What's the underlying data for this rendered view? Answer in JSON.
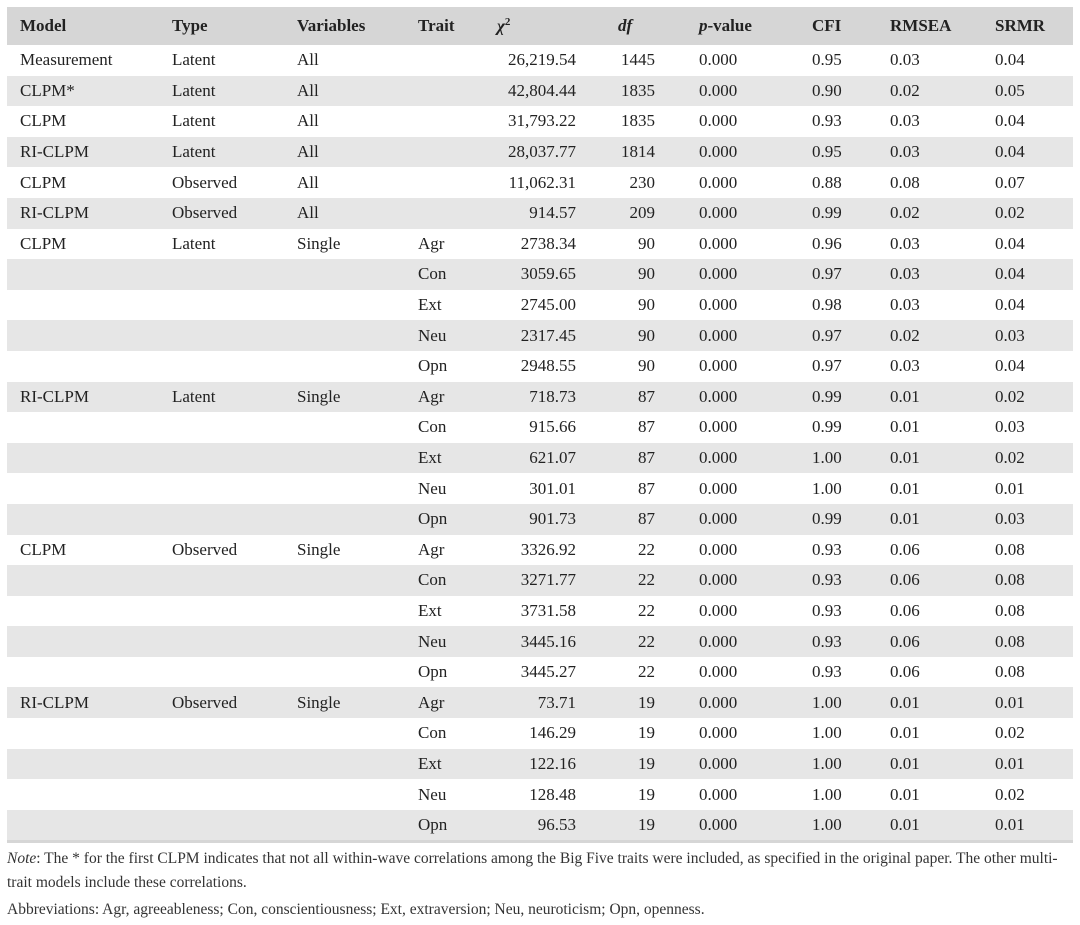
{
  "table": {
    "headers": {
      "model": "Model",
      "type": "Type",
      "variables": "Variables",
      "trait": "Trait",
      "chi2_symbol": "χ",
      "chi2_sup": "2",
      "df": "df",
      "p_italic": "p",
      "p_rest": "-value",
      "cfi": "CFI",
      "rmsea": "RMSEA",
      "srmr": "SRMR"
    },
    "rows": [
      [
        "Measurement",
        "Latent",
        "All",
        "",
        "26,219.54",
        "1445",
        "0.000",
        "0.95",
        "0.03",
        "0.04"
      ],
      [
        "CLPM*",
        "Latent",
        "All",
        "",
        "42,804.44",
        "1835",
        "0.000",
        "0.90",
        "0.02",
        "0.05"
      ],
      [
        "CLPM",
        "Latent",
        "All",
        "",
        "31,793.22",
        "1835",
        "0.000",
        "0.93",
        "0.03",
        "0.04"
      ],
      [
        "RI-CLPM",
        "Latent",
        "All",
        "",
        "28,037.77",
        "1814",
        "0.000",
        "0.95",
        "0.03",
        "0.04"
      ],
      [
        "CLPM",
        "Observed",
        "All",
        "",
        "11,062.31",
        "230",
        "0.000",
        "0.88",
        "0.08",
        "0.07"
      ],
      [
        "RI-CLPM",
        "Observed",
        "All",
        "",
        "914.57",
        "209",
        "0.000",
        "0.99",
        "0.02",
        "0.02"
      ],
      [
        "CLPM",
        "Latent",
        "Single",
        "Agr",
        "2738.34",
        "90",
        "0.000",
        "0.96",
        "0.03",
        "0.04"
      ],
      [
        "",
        "",
        "",
        "Con",
        "3059.65",
        "90",
        "0.000",
        "0.97",
        "0.03",
        "0.04"
      ],
      [
        "",
        "",
        "",
        "Ext",
        "2745.00",
        "90",
        "0.000",
        "0.98",
        "0.03",
        "0.04"
      ],
      [
        "",
        "",
        "",
        "Neu",
        "2317.45",
        "90",
        "0.000",
        "0.97",
        "0.02",
        "0.03"
      ],
      [
        "",
        "",
        "",
        "Opn",
        "2948.55",
        "90",
        "0.000",
        "0.97",
        "0.03",
        "0.04"
      ],
      [
        "RI-CLPM",
        "Latent",
        "Single",
        "Agr",
        "718.73",
        "87",
        "0.000",
        "0.99",
        "0.01",
        "0.02"
      ],
      [
        "",
        "",
        "",
        "Con",
        "915.66",
        "87",
        "0.000",
        "0.99",
        "0.01",
        "0.03"
      ],
      [
        "",
        "",
        "",
        "Ext",
        "621.07",
        "87",
        "0.000",
        "1.00",
        "0.01",
        "0.02"
      ],
      [
        "",
        "",
        "",
        "Neu",
        "301.01",
        "87",
        "0.000",
        "1.00",
        "0.01",
        "0.01"
      ],
      [
        "",
        "",
        "",
        "Opn",
        "901.73",
        "87",
        "0.000",
        "0.99",
        "0.01",
        "0.03"
      ],
      [
        "CLPM",
        "Observed",
        "Single",
        "Agr",
        "3326.92",
        "22",
        "0.000",
        "0.93",
        "0.06",
        "0.08"
      ],
      [
        "",
        "",
        "",
        "Con",
        "3271.77",
        "22",
        "0.000",
        "0.93",
        "0.06",
        "0.08"
      ],
      [
        "",
        "",
        "",
        "Ext",
        "3731.58",
        "22",
        "0.000",
        "0.93",
        "0.06",
        "0.08"
      ],
      [
        "",
        "",
        "",
        "Neu",
        "3445.16",
        "22",
        "0.000",
        "0.93",
        "0.06",
        "0.08"
      ],
      [
        "",
        "",
        "",
        "Opn",
        "3445.27",
        "22",
        "0.000",
        "0.93",
        "0.06",
        "0.08"
      ],
      [
        "RI-CLPM",
        "Observed",
        "Single",
        "Agr",
        "73.71",
        "19",
        "0.000",
        "1.00",
        "0.01",
        "0.01"
      ],
      [
        "",
        "",
        "",
        "Con",
        "146.29",
        "19",
        "0.000",
        "1.00",
        "0.01",
        "0.02"
      ],
      [
        "",
        "",
        "",
        "Ext",
        "122.16",
        "19",
        "0.000",
        "1.00",
        "0.01",
        "0.01"
      ],
      [
        "",
        "",
        "",
        "Neu",
        "128.48",
        "19",
        "0.000",
        "1.00",
        "0.01",
        "0.02"
      ],
      [
        "",
        "",
        "",
        "Opn",
        "96.53",
        "19",
        "0.000",
        "1.00",
        "0.01",
        "0.01"
      ]
    ]
  },
  "notes": {
    "note_label": "Note",
    "note_text": ": The * for the first CLPM indicates that not all within-wave correlations among the Big Five traits were included, as specified in the original paper. The other multi-trait models include these correlations.",
    "abbreviations": "Abbreviations: Agr, agreeableness; Con, conscientiousness; Ext, extraversion; Neu, neuroticism; Opn, openness."
  }
}
